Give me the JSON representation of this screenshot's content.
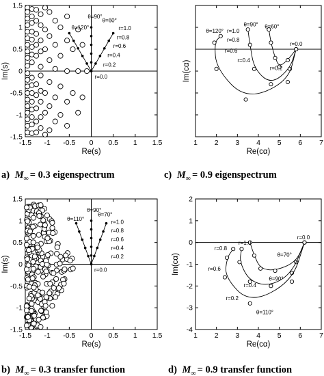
{
  "captions": {
    "a": {
      "prefix": "a)",
      "suffix": "= 0.3 eigenspectrum"
    },
    "b": {
      "prefix": "b)",
      "suffix": "= 0.3 transfer function"
    },
    "c": {
      "prefix": "c)",
      "suffix": "= 0.9 eigenspectrum"
    },
    "d": {
      "prefix": "d)",
      "suffix": "= 0.9 transfer function"
    },
    "mach_symbol": "M",
    "mach_subscript": "∞"
  },
  "chart_data": [
    {
      "id": "a",
      "type": "scatter",
      "xlabel": "Re(s)",
      "ylabel": "Im(s)",
      "xlim": [
        -1.5,
        1.5
      ],
      "ylim": [
        -1.5,
        1.5
      ],
      "xticks": [
        "-1.5",
        "-1",
        "-0.5",
        "0",
        "0.5",
        "1",
        "1.5"
      ],
      "yticks": [
        "-1.5",
        "-1",
        "-0.5",
        "0",
        "0.5",
        "1",
        "1.5"
      ],
      "eigenvalues": [
        [
          -1.45,
          1.45
        ],
        [
          -1.45,
          1.35
        ],
        [
          -1.45,
          1.2
        ],
        [
          -1.45,
          1.05
        ],
        [
          -1.45,
          0.9
        ],
        [
          -1.45,
          0.75
        ],
        [
          -1.45,
          0.6
        ],
        [
          -1.45,
          0.45
        ],
        [
          -1.45,
          0.3
        ],
        [
          -1.45,
          0.12
        ],
        [
          -1.45,
          -0.05
        ],
        [
          -1.45,
          -0.2
        ],
        [
          -1.45,
          -0.35
        ],
        [
          -1.45,
          -0.5
        ],
        [
          -1.45,
          -0.65
        ],
        [
          -1.45,
          -0.8
        ],
        [
          -1.45,
          -0.95
        ],
        [
          -1.45,
          -1.1
        ],
        [
          -1.45,
          -1.25
        ],
        [
          -1.45,
          -1.4
        ],
        [
          -1.35,
          1.42
        ],
        [
          -1.35,
          1.25
        ],
        [
          -1.35,
          1.1
        ],
        [
          -1.35,
          0.9
        ],
        [
          -1.35,
          0.72
        ],
        [
          -1.35,
          0.55
        ],
        [
          -1.35,
          0.38
        ],
        [
          -1.35,
          0.2
        ],
        [
          -1.35,
          -0.15
        ],
        [
          -1.35,
          -0.32
        ],
        [
          -1.35,
          -0.5
        ],
        [
          -1.35,
          -0.7
        ],
        [
          -1.35,
          -0.88
        ],
        [
          -1.35,
          -1.05
        ],
        [
          -1.35,
          -1.22
        ],
        [
          -1.35,
          -1.42
        ],
        [
          -1.25,
          1.4
        ],
        [
          -1.25,
          1.15
        ],
        [
          -1.25,
          0.85
        ],
        [
          -1.25,
          0.6
        ],
        [
          -1.25,
          0.35
        ],
        [
          -1.25,
          -0.3
        ],
        [
          -1.25,
          -0.55
        ],
        [
          -1.25,
          -0.85
        ],
        [
          -1.25,
          -1.15
        ],
        [
          -1.25,
          -1.4
        ],
        [
          -1.15,
          1.3
        ],
        [
          -1.15,
          1.05
        ],
        [
          -1.15,
          0.7
        ],
        [
          -1.15,
          0.45
        ],
        [
          -1.15,
          0.1
        ],
        [
          -1.15,
          -0.1
        ],
        [
          -1.15,
          -0.45
        ],
        [
          -1.15,
          -0.7
        ],
        [
          -1.15,
          -1.05
        ],
        [
          -1.15,
          -1.3
        ],
        [
          -1.05,
          1.45
        ],
        [
          -1.05,
          0.95
        ],
        [
          -1.05,
          0.5
        ],
        [
          -1.05,
          -0.5
        ],
        [
          -1.05,
          -0.95
        ],
        [
          -1.05,
          -1.45
        ],
        [
          -0.95,
          1.35
        ],
        [
          -0.95,
          0.8
        ],
        [
          -0.95,
          0.25
        ],
        [
          -0.95,
          -0.25
        ],
        [
          -0.95,
          -0.8
        ],
        [
          -0.95,
          -1.35
        ],
        [
          -0.82,
          1.15
        ],
        [
          -0.82,
          0.6
        ],
        [
          -0.82,
          0.05
        ],
        [
          -0.82,
          -0.6
        ],
        [
          -0.82,
          -1.15
        ],
        [
          -0.7,
          1.0
        ],
        [
          -0.7,
          0.35
        ],
        [
          -0.7,
          -0.35
        ],
        [
          -0.7,
          -1.0
        ],
        [
          -0.55,
          1.25
        ],
        [
          -0.55,
          0.7
        ],
        [
          -0.55,
          0.0
        ],
        [
          -0.55,
          -0.7
        ],
        [
          -0.55,
          -1.25
        ],
        [
          -0.42,
          0.5
        ],
        [
          -0.42,
          -0.5
        ],
        [
          -0.3,
          0.95
        ],
        [
          -0.3,
          0.0
        ],
        [
          -0.3,
          -0.95
        ],
        [
          -0.2,
          0.6
        ],
        [
          -0.2,
          -0.6
        ],
        [
          -0.1,
          0.0
        ]
      ],
      "rays": {
        "angles_deg": [
          90,
          60,
          120
        ],
        "r_values": [
          0.0,
          0.2,
          0.4,
          0.6,
          0.8,
          1.0
        ]
      },
      "annotations": [
        {
          "text": "θ=90°",
          "x": -0.08,
          "y": 1.2
        },
        {
          "text": "θ=60°",
          "x": 0.25,
          "y": 1.12
        },
        {
          "text": "θ=120°",
          "x": -0.45,
          "y": 0.95
        },
        {
          "text": "r=1.0",
          "x": 0.62,
          "y": 0.94
        },
        {
          "text": "r=0.8",
          "x": 0.58,
          "y": 0.73
        },
        {
          "text": "r=0.6",
          "x": 0.5,
          "y": 0.53
        },
        {
          "text": "r=0.4",
          "x": 0.37,
          "y": 0.32
        },
        {
          "text": "r=0.2",
          "x": 0.27,
          "y": 0.1
        },
        {
          "text": "r=0.0",
          "x": 0.08,
          "y": -0.17
        }
      ]
    },
    {
      "id": "b",
      "type": "scatter",
      "xlabel": "Re(s)",
      "ylabel": "Im(s)",
      "xlim": [
        -1.5,
        1.5
      ],
      "ylim": [
        -1.5,
        1.5
      ],
      "xticks": [
        "-1.5",
        "-1",
        "-0.5",
        "0",
        "0.5",
        "1",
        "1.5"
      ],
      "yticks": [
        "-1.5",
        "-1",
        "-0.5",
        "0",
        "0.5",
        "1",
        "1.5"
      ],
      "eigenvalues": "dense cloud filling the left half-plane, denser toward Re(s)=-1.5, bounded by |Im(s)| ≤ 1.5 and Re(s) ≤ -0.25",
      "rays": {
        "angles_deg": [
          90,
          70,
          110
        ],
        "r_values": [
          0.0,
          0.2,
          0.4,
          0.6,
          0.8,
          1.0
        ]
      },
      "annotations": [
        {
          "text": "θ=90°",
          "x": -0.1,
          "y": 1.2
        },
        {
          "text": "θ=70°",
          "x": 0.15,
          "y": 1.1
        },
        {
          "text": "θ=110°",
          "x": -0.55,
          "y": 1.0
        },
        {
          "text": "r=1.0",
          "x": 0.45,
          "y": 0.93
        },
        {
          "text": "r=0.8",
          "x": 0.45,
          "y": 0.73
        },
        {
          "text": "r=0.6",
          "x": 0.45,
          "y": 0.53
        },
        {
          "text": "r=0.4",
          "x": 0.45,
          "y": 0.33
        },
        {
          "text": "r=0.2",
          "x": 0.45,
          "y": 0.13
        },
        {
          "text": "r=0.0",
          "x": 0.07,
          "y": -0.17
        }
      ]
    },
    {
      "id": "c",
      "type": "line",
      "xlabel": "Re(cα)",
      "ylabel": "Im(cα)",
      "xlim": [
        1,
        7
      ],
      "ylim": [
        -4,
        2
      ],
      "xticks": [
        "1",
        "2",
        "3",
        "4",
        "5",
        "6",
        "7"
      ],
      "yticks": [],
      "series": [
        {
          "name": "θ=60°",
          "x": [
            5.8,
            5.4,
            5.0,
            4.8,
            4.6,
            4.5
          ],
          "y": [
            0.0,
            -0.5,
            -0.8,
            -0.4,
            0.3,
            0.9
          ]
        },
        {
          "name": "θ=90°",
          "x": [
            5.8,
            5.5,
            4.6,
            3.8,
            3.6,
            3.5
          ],
          "y": [
            0.0,
            -0.9,
            -1.6,
            -0.9,
            0.2,
            0.9
          ]
        },
        {
          "name": "θ=120°",
          "x": [
            5.8,
            5.4,
            3.4,
            2.0,
            1.9,
            2.2
          ],
          "y": [
            0.0,
            -1.5,
            -2.3,
            -0.9,
            0.3,
            0.6
          ]
        }
      ],
      "annotations": [
        {
          "text": "θ=90°",
          "x": 3.3,
          "y": 1.05
        },
        {
          "text": "θ=60°",
          "x": 4.3,
          "y": 0.95
        },
        {
          "text": "θ=120°",
          "x": 1.5,
          "y": 0.75
        },
        {
          "text": "r=1.0",
          "x": 2.5,
          "y": 0.75
        },
        {
          "text": "r=0.8",
          "x": 2.5,
          "y": 0.35
        },
        {
          "text": "r=0.6",
          "x": 2.4,
          "y": -0.15
        },
        {
          "text": "r=0.4",
          "x": 3.0,
          "y": -0.6
        },
        {
          "text": "r=0.2",
          "x": 4.55,
          "y": -0.95
        },
        {
          "text": "r=0.0",
          "x": 5.5,
          "y": 0.15
        }
      ]
    },
    {
      "id": "d",
      "type": "line",
      "xlabel": "Re(cα)",
      "ylabel": "Im(cα)",
      "xlim": [
        1,
        7
      ],
      "ylim": [
        -4,
        2
      ],
      "xticks": [
        "1",
        "2",
        "3",
        "4",
        "5",
        "6",
        "7"
      ],
      "yticks": [
        "-4",
        "-3",
        "-2",
        "-1",
        "0",
        "1",
        "2"
      ],
      "series": [
        {
          "name": "θ=70°",
          "x": [
            6.2,
            5.8,
            4.8,
            4.1,
            3.8,
            3.6
          ],
          "y": [
            0.0,
            -0.9,
            -1.3,
            -1.2,
            -0.6,
            0.0
          ]
        },
        {
          "name": "θ=90°",
          "x": [
            6.2,
            5.6,
            4.6,
            3.6,
            3.1,
            3.2
          ],
          "y": [
            0.0,
            -1.4,
            -2.0,
            -1.8,
            -0.9,
            -0.3
          ]
        },
        {
          "name": "θ=110°",
          "x": [
            6.2,
            5.6,
            3.6,
            2.4,
            2.5,
            2.8
          ],
          "y": [
            0.0,
            -1.8,
            -2.8,
            -1.6,
            -0.7,
            -0.3
          ]
        }
      ],
      "annotations": [
        {
          "text": "r=0.0",
          "x": 5.85,
          "y": 0.15
        },
        {
          "text": "r=1.0",
          "x": 3.05,
          "y": -0.1
        },
        {
          "text": "r=0.8",
          "x": 1.9,
          "y": -0.35
        },
        {
          "text": "r=0.6",
          "x": 1.6,
          "y": -1.3
        },
        {
          "text": "r=0.4",
          "x": 3.3,
          "y": -2.05
        },
        {
          "text": "r=0.2",
          "x": 2.45,
          "y": -2.65
        },
        {
          "text": "θ=70°",
          "x": 4.9,
          "y": -0.65
        },
        {
          "text": "θ=90°",
          "x": 4.5,
          "y": -1.75
        },
        {
          "text": "θ=110°",
          "x": 3.9,
          "y": -3.3
        }
      ]
    }
  ]
}
